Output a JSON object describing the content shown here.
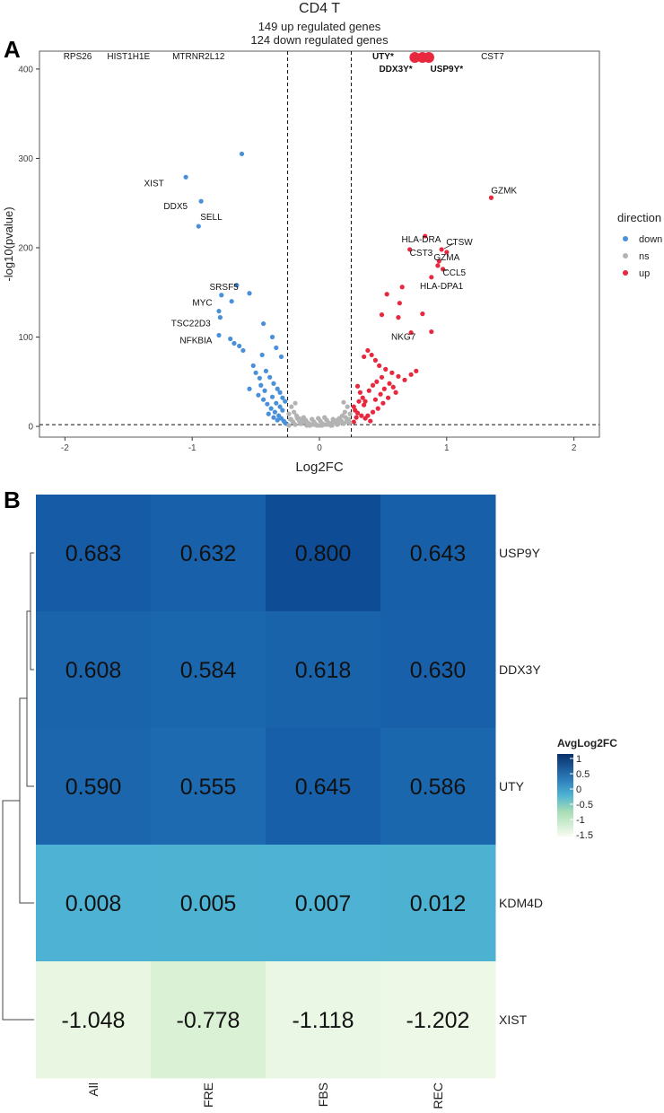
{
  "chart_data": [
    {
      "panel_label": "A",
      "type": "scatter",
      "title": "CD4 T",
      "subtitle_lines": [
        "149  up regulated genes",
        "124  down regulated genes"
      ],
      "xlabel": "Log2FC",
      "ylabel": "-log10(pvalue)",
      "xlim": [
        -2.2,
        2.2
      ],
      "ylim": [
        -12,
        420
      ],
      "xticks": [
        -2,
        -1,
        0,
        1,
        2
      ],
      "yticks": [
        0,
        100,
        200,
        300,
        400
      ],
      "thresholds": {
        "x": [
          -0.25,
          0.25
        ],
        "y": 2
      },
      "legend": {
        "title": "direction",
        "position": "right",
        "entries": [
          {
            "name": "down",
            "color": "#4a90d9"
          },
          {
            "name": "ns",
            "color": "#b3b3b3"
          },
          {
            "name": "up",
            "color": "#e8283f"
          }
        ]
      },
      "series": [
        {
          "name": "down",
          "points": [
            [
              -0.61,
              305
            ],
            [
              -1.05,
              279
            ],
            [
              -0.93,
              252
            ],
            [
              -0.95,
              224
            ],
            [
              -0.65,
              158
            ],
            [
              -0.55,
              149
            ],
            [
              -0.77,
              147
            ],
            [
              -0.69,
              140
            ],
            [
              -0.79,
              129
            ],
            [
              -0.78,
              122
            ],
            [
              -0.44,
              115
            ],
            [
              -0.79,
              102
            ],
            [
              -0.7,
              98
            ],
            [
              -0.67,
              93
            ],
            [
              -0.63,
              90
            ],
            [
              -0.6,
              85
            ],
            [
              -0.37,
              100
            ],
            [
              -0.34,
              88
            ],
            [
              -0.3,
              78
            ],
            [
              -0.45,
              80
            ],
            [
              -0.52,
              68
            ],
            [
              -0.5,
              60
            ],
            [
              -0.47,
              54
            ],
            [
              -0.42,
              62
            ],
            [
              -0.39,
              55
            ],
            [
              -0.36,
              48
            ],
            [
              -0.33,
              42
            ],
            [
              -0.31,
              38
            ],
            [
              -0.29,
              32
            ],
            [
              -0.27,
              28
            ],
            [
              -0.55,
              42
            ],
            [
              -0.48,
              35
            ],
            [
              -0.44,
              30
            ],
            [
              -0.41,
              25
            ],
            [
              -0.38,
              20
            ],
            [
              -0.35,
              16
            ],
            [
              -0.32,
              12
            ],
            [
              -0.3,
              9
            ],
            [
              -0.28,
              6
            ],
            [
              -0.27,
              4
            ],
            [
              -0.26,
              3
            ],
            [
              -0.4,
              14
            ],
            [
              -0.36,
              10
            ],
            [
              -0.33,
              7
            ],
            [
              -0.29,
              18
            ],
            [
              -0.31,
              22
            ],
            [
              -0.34,
              26
            ],
            [
              -0.37,
              33
            ],
            [
              -0.43,
              40
            ],
            [
              -0.46,
              46
            ]
          ]
        },
        {
          "name": "ns",
          "points": [
            [
              -0.22,
              22
            ],
            [
              -0.2,
              16
            ],
            [
              -0.18,
              12
            ],
            [
              -0.16,
              9
            ],
            [
              -0.14,
              7
            ],
            [
              -0.12,
              5
            ],
            [
              -0.1,
              4
            ],
            [
              -0.08,
              3
            ],
            [
              -0.06,
              2
            ],
            [
              -0.04,
              2
            ],
            [
              -0.02,
              1
            ],
            [
              0.0,
              1
            ],
            [
              0.02,
              1
            ],
            [
              0.04,
              2
            ],
            [
              0.06,
              2
            ],
            [
              0.08,
              3
            ],
            [
              0.1,
              4
            ],
            [
              0.12,
              5
            ],
            [
              0.14,
              7
            ],
            [
              0.16,
              9
            ],
            [
              0.18,
              12
            ],
            [
              0.2,
              16
            ],
            [
              0.22,
              22
            ],
            [
              0.19,
              27
            ],
            [
              -0.19,
              26
            ],
            [
              -0.24,
              14
            ],
            [
              0.24,
              14
            ],
            [
              -0.15,
              3
            ],
            [
              0.15,
              3
            ],
            [
              -0.1,
              1
            ],
            [
              0.1,
              1
            ],
            [
              -0.23,
              8
            ],
            [
              0.23,
              8
            ],
            [
              -0.21,
              5
            ],
            [
              0.21,
              5
            ]
          ]
        },
        {
          "name": "up",
          "points": [
            [
              0.75,
              413
            ],
            [
              0.81,
              413
            ],
            [
              0.86,
              413
            ],
            [
              1.35,
              256
            ],
            [
              0.83,
              213
            ],
            [
              0.71,
              198
            ],
            [
              0.96,
              198
            ],
            [
              1.0,
              195
            ],
            [
              0.94,
              185
            ],
            [
              0.93,
              180
            ],
            [
              0.97,
              176
            ],
            [
              0.88,
              167
            ],
            [
              0.65,
              156
            ],
            [
              0.53,
              148
            ],
            [
              0.63,
              138
            ],
            [
              0.81,
              126
            ],
            [
              0.49,
              125
            ],
            [
              0.62,
              122
            ],
            [
              0.88,
              106
            ],
            [
              0.72,
              105
            ],
            [
              0.35,
              78
            ],
            [
              0.38,
              85
            ],
            [
              0.41,
              80
            ],
            [
              0.44,
              74
            ],
            [
              0.47,
              68
            ],
            [
              0.52,
              64
            ],
            [
              0.57,
              60
            ],
            [
              0.62,
              56
            ],
            [
              0.67,
              52
            ],
            [
              0.72,
              58
            ],
            [
              0.76,
              62
            ],
            [
              0.3,
              45
            ],
            [
              0.32,
              38
            ],
            [
              0.34,
              32
            ],
            [
              0.36,
              28
            ],
            [
              0.39,
              40
            ],
            [
              0.42,
              46
            ],
            [
              0.45,
              50
            ],
            [
              0.49,
              55
            ],
            [
              0.27,
              22
            ],
            [
              0.28,
              18
            ],
            [
              0.3,
              15
            ],
            [
              0.33,
              12
            ],
            [
              0.36,
              9
            ],
            [
              0.4,
              6
            ],
            [
              0.44,
              30
            ],
            [
              0.48,
              36
            ],
            [
              0.51,
              42
            ],
            [
              0.55,
              48
            ],
            [
              0.58,
              44
            ],
            [
              0.6,
              38
            ],
            [
              0.54,
              32
            ],
            [
              0.5,
              26
            ],
            [
              0.46,
              20
            ],
            [
              0.42,
              16
            ],
            [
              0.38,
              12
            ],
            [
              0.35,
              24
            ],
            [
              0.31,
              28
            ],
            [
              0.29,
              10
            ],
            [
              0.27,
              5
            ]
          ]
        }
      ],
      "labels": [
        {
          "text": "RPS26",
          "x": -1.9,
          "y": 414
        },
        {
          "text": "HIST1H1E",
          "x": -1.5,
          "y": 414
        },
        {
          "text": "MTRNR2L12",
          "x": -0.95,
          "y": 414
        },
        {
          "text": "CST7",
          "x": 1.36,
          "y": 414
        },
        {
          "text": "UTY*",
          "x": 0.5,
          "y": 414
        },
        {
          "text": "DDX3Y*",
          "x": 0.6,
          "y": 400
        },
        {
          "text": "USP9Y*",
          "x": 1.0,
          "y": 400
        },
        {
          "text": "XIST",
          "x": -1.3,
          "y": 272
        },
        {
          "text": "DDX5",
          "x": -1.13,
          "y": 246
        },
        {
          "text": "SELL",
          "x": -0.85,
          "y": 234
        },
        {
          "text": "GZMK",
          "x": 1.45,
          "y": 264
        },
        {
          "text": "HLA-DRA",
          "x": 0.8,
          "y": 209
        },
        {
          "text": "CTSW",
          "x": 1.1,
          "y": 206
        },
        {
          "text": "CST3",
          "x": 0.8,
          "y": 194
        },
        {
          "text": "GZMA",
          "x": 1.0,
          "y": 189
        },
        {
          "text": "CCL5",
          "x": 1.06,
          "y": 172
        },
        {
          "text": "HLA-DPA1",
          "x": 0.96,
          "y": 157
        },
        {
          "text": "SRSF5",
          "x": -0.75,
          "y": 156
        },
        {
          "text": "MYC",
          "x": -0.92,
          "y": 138
        },
        {
          "text": "TSC22D3",
          "x": -1.01,
          "y": 115
        },
        {
          "text": "NFKBIA",
          "x": -0.97,
          "y": 96
        },
        {
          "text": "NKG7",
          "x": 0.66,
          "y": 100
        }
      ]
    },
    {
      "panel_label": "B",
      "type": "heatmap",
      "legend_title": "AvgLog2FC",
      "legend_ticks": [
        "1",
        "0.5",
        "0",
        "-0.5",
        "-1",
        "-1.5"
      ],
      "legend_range": [
        -1.5,
        1
      ],
      "legend_position": "right",
      "columns": [
        "All",
        "FRE",
        "FBS",
        "REC"
      ],
      "rows": [
        "USP9Y",
        "DDX3Y",
        "UTY",
        "KDM4D",
        "XIST"
      ],
      "values": [
        [
          0.683,
          0.632,
          0.8,
          0.643
        ],
        [
          0.608,
          0.584,
          0.618,
          0.63
        ],
        [
          0.59,
          0.555,
          0.645,
          0.586
        ],
        [
          0.008,
          0.005,
          0.007,
          0.012
        ],
        [
          -1.048,
          -0.778,
          -1.118,
          -1.202
        ]
      ],
      "display_values": [
        [
          "0.683",
          "0.632",
          "0.800",
          "0.643"
        ],
        [
          "0.608",
          "0.584",
          "0.618",
          "0.630"
        ],
        [
          "0.590",
          "0.555",
          "0.645",
          "0.586"
        ],
        [
          "0.008",
          "0.005",
          "0.007",
          "0.012"
        ],
        [
          "-1.048",
          "-0.778",
          "-1.118",
          "-1.202"
        ]
      ],
      "dendrogram": "rows clustered: ((USP9Y, DDX3Y), UTY) joined with KDM4D, then XIST"
    }
  ]
}
